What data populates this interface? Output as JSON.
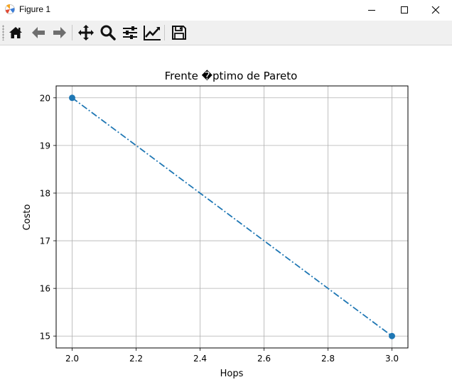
{
  "window": {
    "title": "Figure 1",
    "app_icon": "matplotlib-icon",
    "controls": [
      "minimize-icon",
      "maximize-icon",
      "close-icon"
    ]
  },
  "toolbar": {
    "buttons": [
      {
        "name": "home",
        "icon": "home-icon"
      },
      {
        "name": "back",
        "icon": "arrow-left-icon"
      },
      {
        "name": "forward",
        "icon": "arrow-right-icon"
      },
      {
        "name": "pan",
        "icon": "move-icon"
      },
      {
        "name": "zoom",
        "icon": "magnifier-icon"
      },
      {
        "name": "configure-subplots",
        "icon": "sliders-icon"
      },
      {
        "name": "edit-axis",
        "icon": "line-chart-icon"
      },
      {
        "name": "save",
        "icon": "floppy-disk-icon"
      }
    ]
  },
  "chart_data": {
    "type": "line",
    "title": "Frente �ptimo de Pareto",
    "xlabel": "Hops",
    "ylabel": "Costo",
    "x": [
      2.0,
      3.0
    ],
    "series": [
      {
        "values": [
          20,
          15
        ],
        "color": "#1f77b4",
        "linestyle": "dash-dot",
        "marker": "circle"
      }
    ],
    "xlim": [
      1.95,
      3.05
    ],
    "ylim": [
      14.75,
      20.25
    ],
    "xticks": [
      "2.0",
      "2.2",
      "2.4",
      "2.6",
      "2.8",
      "3.0"
    ],
    "yticks": [
      "15",
      "16",
      "17",
      "18",
      "19",
      "20"
    ],
    "grid": true
  }
}
